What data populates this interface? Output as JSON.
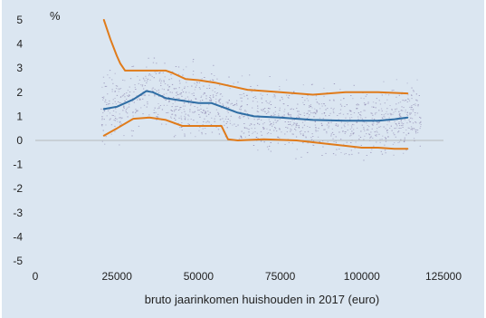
{
  "chart_data": {
    "type": "line",
    "ylabel": "%",
    "xlabel": "bruto jaarinkomen huishouden in 2017 (euro)",
    "xlim": [
      0,
      125000
    ],
    "ylim": [
      -5,
      5
    ],
    "x_ticks": [
      0,
      25000,
      50000,
      75000,
      100000,
      125000
    ],
    "y_ticks": [
      5,
      4,
      3,
      2,
      1,
      0,
      -1,
      -2,
      -3,
      -4,
      -5
    ],
    "grid": false,
    "background_scatter": true,
    "colors": {
      "median": "#2e6da4",
      "band": "#e07b1a",
      "scatter": "#7a6fa0",
      "baseline": "#aaaaaa",
      "background": "#dbe6f1"
    },
    "series": [
      {
        "role": "median",
        "x": [
          21000,
          25000,
          30000,
          34000,
          36000,
          40000,
          45000,
          50000,
          54000,
          58000,
          62000,
          67000,
          75000,
          85000,
          95000,
          105000,
          110000,
          114000
        ],
        "y": [
          1.3,
          1.4,
          1.7,
          2.05,
          2.0,
          1.75,
          1.65,
          1.55,
          1.55,
          1.35,
          1.15,
          1.0,
          0.95,
          0.85,
          0.82,
          0.82,
          0.88,
          0.95
        ]
      },
      {
        "role": "upper",
        "x": [
          21000,
          23000,
          25000,
          26000,
          27500,
          30000,
          35000,
          40000,
          42000,
          46000,
          50000,
          55000,
          60000,
          65000,
          75000,
          85000,
          95000,
          105000,
          114000
        ],
        "y": [
          5.0,
          4.2,
          3.5,
          3.2,
          2.9,
          2.9,
          2.9,
          2.9,
          2.8,
          2.55,
          2.5,
          2.4,
          2.25,
          2.1,
          2.0,
          1.9,
          2.0,
          2.0,
          1.95
        ]
      },
      {
        "role": "lower",
        "x": [
          21000,
          25000,
          30000,
          35000,
          40000,
          45000,
          50000,
          55000,
          57000,
          59000,
          62000,
          70000,
          80000,
          90000,
          100000,
          105000,
          110000,
          114000
        ],
        "y": [
          0.2,
          0.5,
          0.9,
          0.95,
          0.85,
          0.6,
          0.6,
          0.6,
          0.6,
          0.05,
          0.0,
          0.05,
          0.0,
          -0.15,
          -0.3,
          -0.3,
          -0.35,
          -0.35
        ]
      }
    ]
  }
}
